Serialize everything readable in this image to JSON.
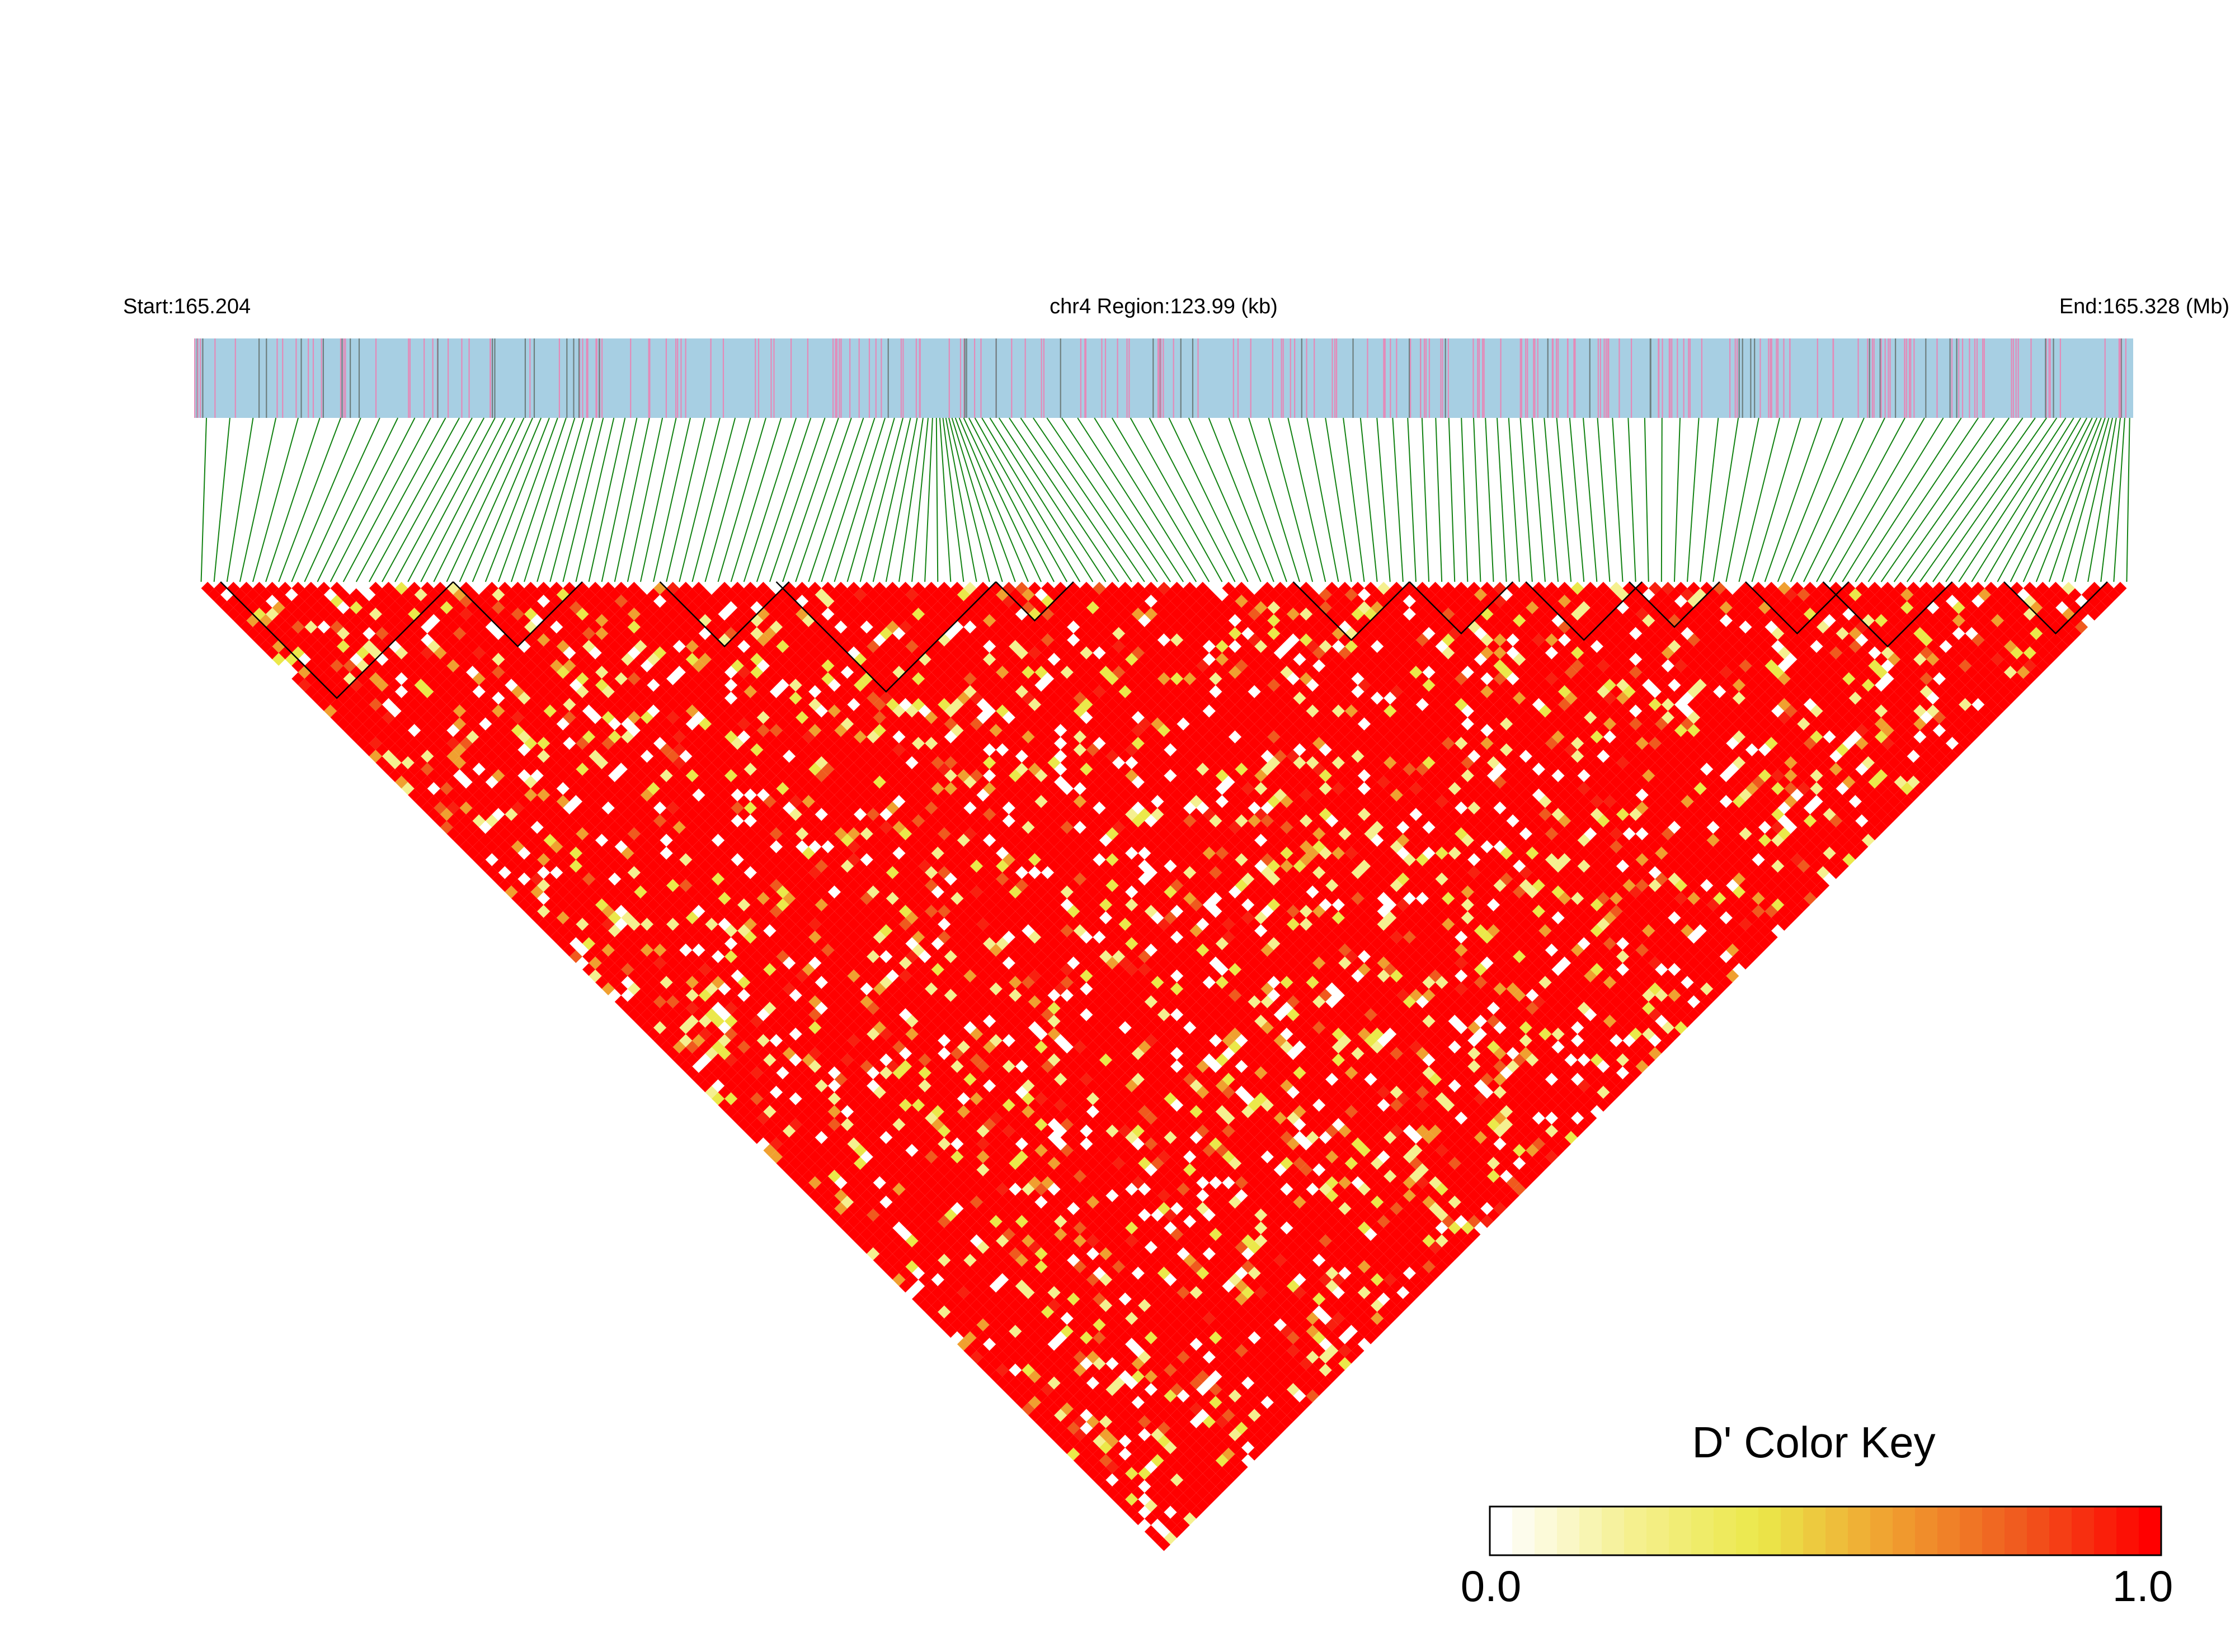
{
  "chart_data": {
    "type": "heatmap",
    "start_label": "Start:165.204",
    "region_label": "chr4 Region:123.99 (kb)",
    "end_label": "End:165.328 (Mb)",
    "chromosome": "chr4",
    "region_start_mb": 165.204,
    "region_end_mb": 165.328,
    "region_size_kb": 123.99,
    "statistic": "D'",
    "color_key": {
      "title": "D' Color Key",
      "min_label": "0.0",
      "max_label": "1.0",
      "range": [
        0.0,
        1.0
      ],
      "colors": [
        "#ffffff",
        "#f5f090",
        "#ebe84a",
        "#f0a030",
        "#f05a1e",
        "#ff0000"
      ]
    },
    "colors": {
      "track_background": "#a7cfe3",
      "variant_tick": "#e48ab8",
      "dense_variant_tick": "#6e7f7f",
      "connector_line": "#128212",
      "block_outline": "#000000"
    },
    "notes": "Triangular pairwise LD heatmap of ~300 SNPs; predominantly high D' (red) with scattered lower values (yellow/white). Black triangles mark haplotype blocks along the top."
  }
}
